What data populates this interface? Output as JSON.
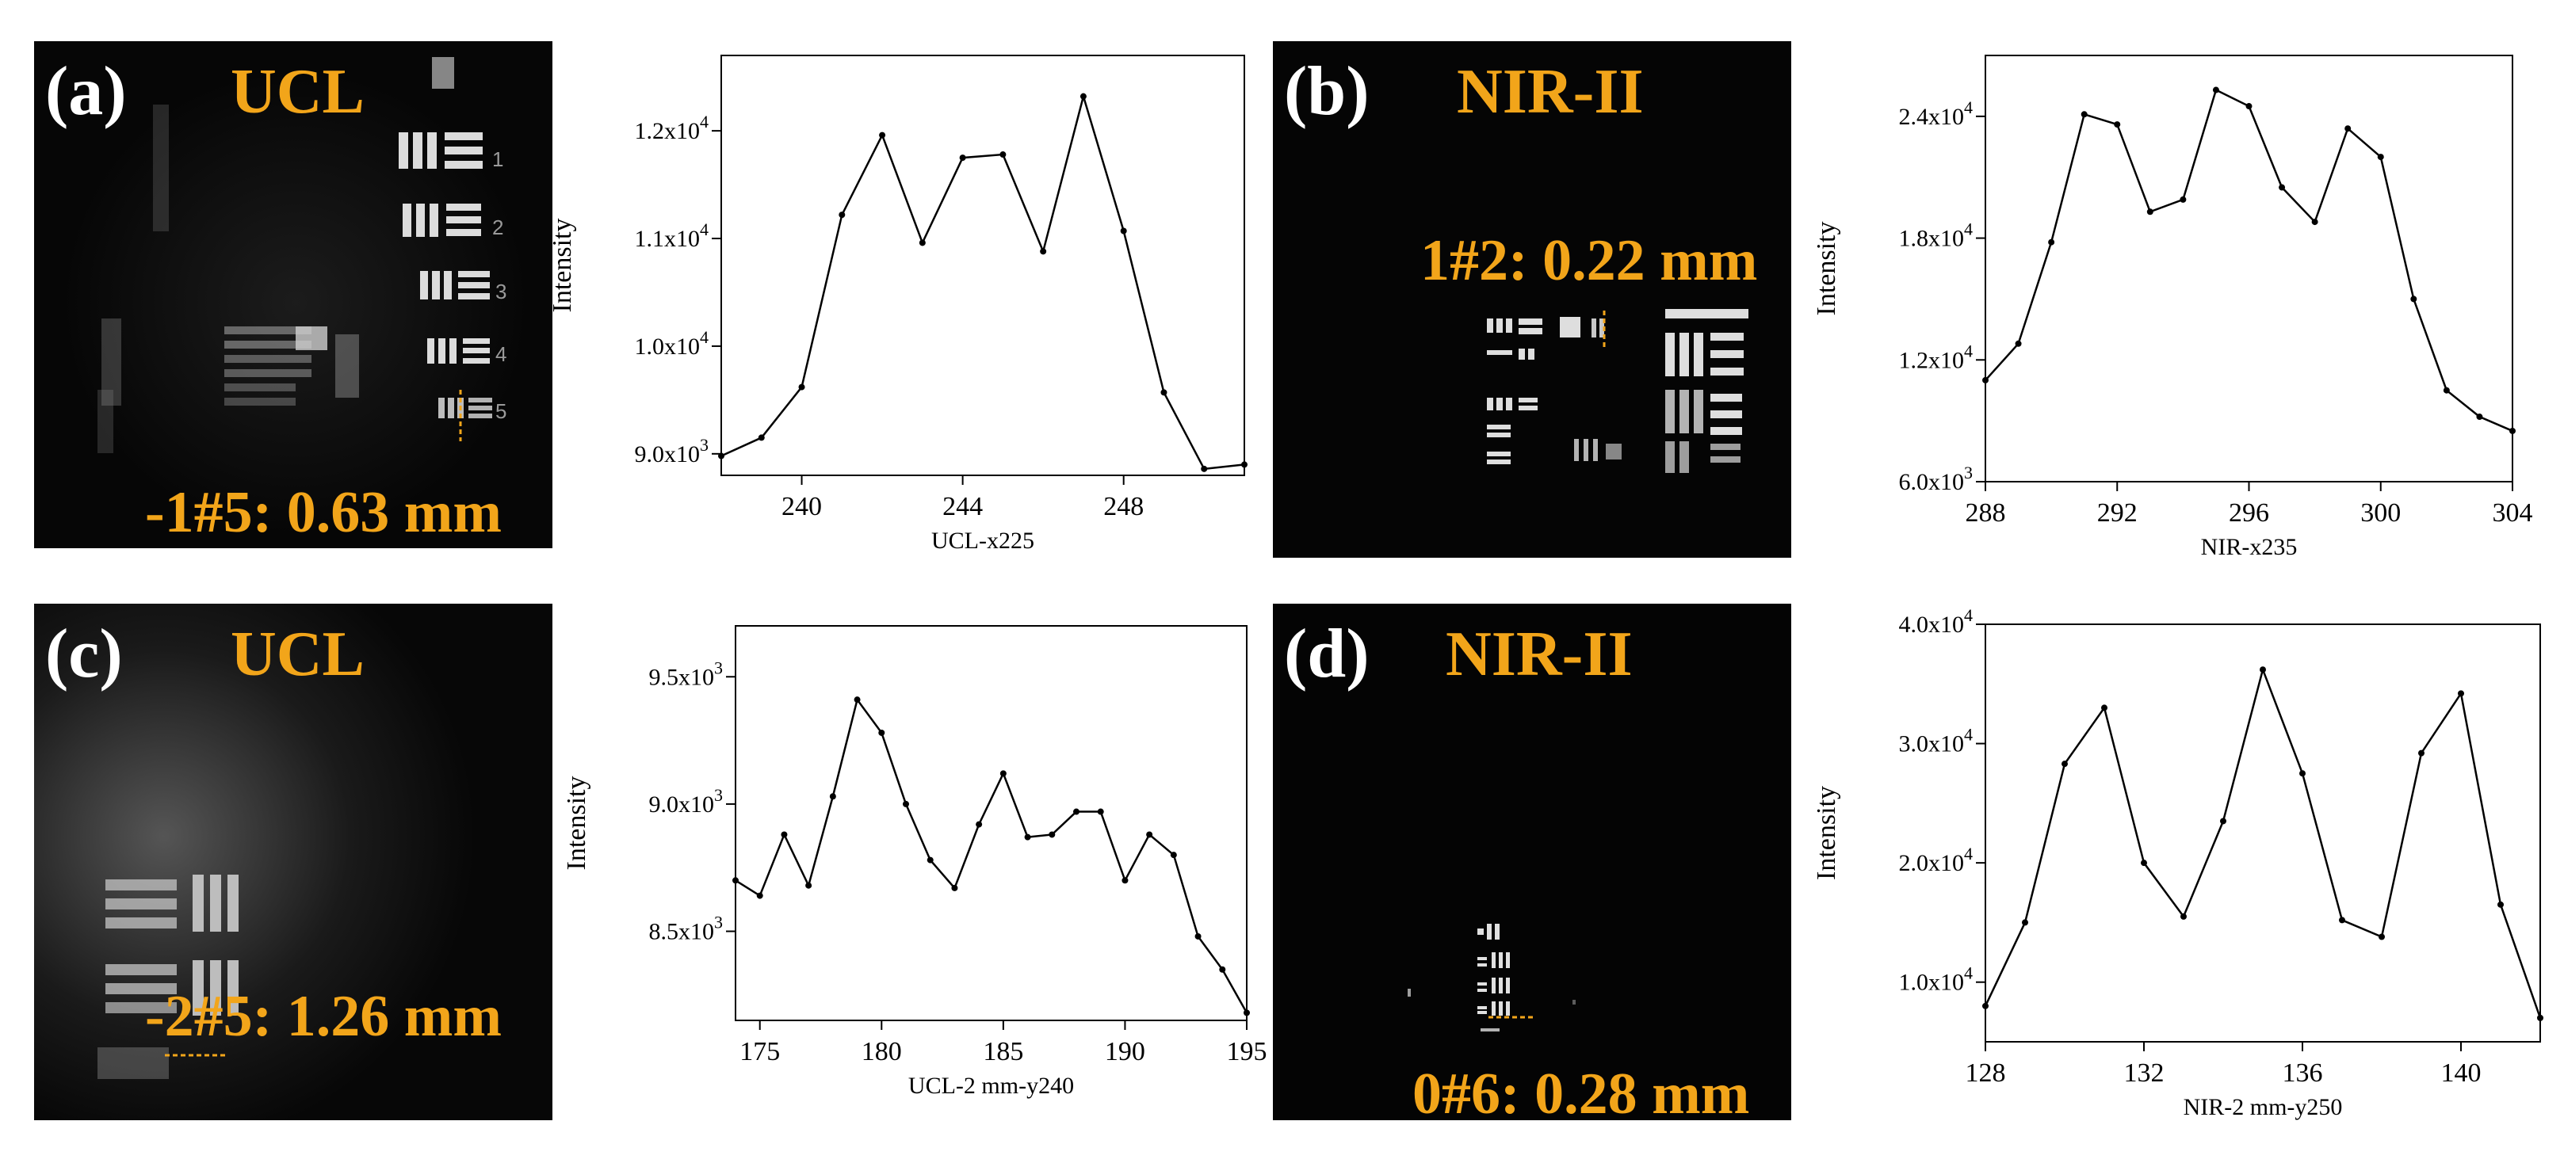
{
  "panels": {
    "a": {
      "letter": "(a)",
      "modality": "UCL",
      "resolution": "-1#5: 0.63 mm"
    },
    "b": {
      "letter": "(b)",
      "modality": "NIR-II",
      "resolution": "1#2: 0.22 mm"
    },
    "c": {
      "letter": "(c)",
      "modality": "UCL",
      "resolution": "-2#5: 1.26 mm"
    },
    "d": {
      "letter": "(d)",
      "modality": "NIR-II",
      "resolution": "0#6: 0.28 mm"
    }
  },
  "colors": {
    "label_accent": "#f2a51a",
    "image_bg": "#050505",
    "line": "#000000"
  },
  "chart_data": [
    {
      "id": "a",
      "type": "line",
      "xlabel": "UCL-x225",
      "ylabel": "Intensity",
      "xlim": [
        238,
        251
      ],
      "ylim": [
        8800,
        12700
      ],
      "xticks": [
        240,
        244,
        248
      ],
      "xtick_labels": [
        "240",
        "244",
        "248"
      ],
      "yticks": [
        9000,
        10000,
        11000,
        12000
      ],
      "ytick_labels": [
        [
          "9.0x10",
          "3"
        ],
        [
          "1.0x10",
          "4"
        ],
        [
          "1.1x10",
          "4"
        ],
        [
          "1.2x10",
          "4"
        ]
      ],
      "series": [
        {
          "name": "UCL-x225",
          "x": [
            238,
            239,
            240,
            241,
            242,
            243,
            244,
            245,
            246,
            247,
            248,
            249,
            250,
            251
          ],
          "y": [
            8980,
            9150,
            9620,
            11220,
            11960,
            10960,
            11750,
            11780,
            10880,
            12320,
            11070,
            9570,
            8860,
            8900
          ]
        }
      ]
    },
    {
      "id": "b",
      "type": "line",
      "xlabel": "NIR-x235",
      "ylabel": "Intensity",
      "xlim": [
        288,
        304
      ],
      "ylim": [
        6000,
        27000
      ],
      "xticks": [
        288,
        292,
        296,
        300,
        304
      ],
      "xtick_labels": [
        "288",
        "292",
        "296",
        "300",
        "304"
      ],
      "yticks": [
        6000,
        12000,
        18000,
        24000
      ],
      "ytick_labels": [
        [
          "6.0x10",
          "3"
        ],
        [
          "1.2x10",
          "4"
        ],
        [
          "1.8x10",
          "4"
        ],
        [
          "2.4x10",
          "4"
        ]
      ],
      "series": [
        {
          "name": "NIR-x235",
          "x": [
            288,
            289,
            290,
            291,
            292,
            293,
            294,
            295,
            296,
            297,
            298,
            299,
            300,
            301,
            302,
            303,
            304
          ],
          "y": [
            11000,
            12800,
            17800,
            24100,
            23600,
            19300,
            19900,
            25300,
            24500,
            20500,
            18800,
            23400,
            22000,
            15000,
            10500,
            9200,
            8500
          ]
        }
      ]
    },
    {
      "id": "c",
      "type": "line",
      "xlabel": "UCL-2 mm-y240",
      "ylabel": "Intensity",
      "xlim": [
        174,
        195
      ],
      "ylim": [
        8150,
        9700
      ],
      "xticks": [
        175,
        180,
        185,
        190,
        195
      ],
      "xtick_labels": [
        "175",
        "180",
        "185",
        "190",
        "195"
      ],
      "yticks": [
        8500,
        9000,
        9500
      ],
      "ytick_labels": [
        [
          "8.5x10",
          "3"
        ],
        [
          "9.0x10",
          "3"
        ],
        [
          "9.5x10",
          "3"
        ]
      ],
      "series": [
        {
          "name": "UCL-2 mm-y240",
          "x": [
            174,
            175,
            176,
            177,
            178,
            179,
            180,
            181,
            182,
            183,
            184,
            185,
            186,
            187,
            188,
            189,
            190,
            191,
            192,
            193,
            194,
            195
          ],
          "y": [
            8700,
            8640,
            8880,
            8680,
            9030,
            9410,
            9280,
            9000,
            8780,
            8670,
            8920,
            9120,
            8870,
            8880,
            8970,
            8970,
            8700,
            8880,
            8800,
            8480,
            8350,
            8180
          ]
        }
      ]
    },
    {
      "id": "d",
      "type": "line",
      "xlabel": "NIR-2 mm-y250",
      "ylabel": "Intensity",
      "xlim": [
        128,
        142
      ],
      "ylim": [
        5000,
        40000
      ],
      "xticks": [
        128,
        132,
        136,
        140
      ],
      "xtick_labels": [
        "128",
        "132",
        "136",
        "140"
      ],
      "yticks": [
        10000,
        20000,
        30000,
        40000
      ],
      "ytick_labels": [
        [
          "1.0x10",
          "4"
        ],
        [
          "2.0x10",
          "4"
        ],
        [
          "3.0x10",
          "4"
        ],
        [
          "4.0x10",
          "4"
        ]
      ],
      "series": [
        {
          "name": "NIR-2 mm-y250",
          "x": [
            128,
            129,
            130,
            131,
            132,
            133,
            134,
            135,
            136,
            137,
            138,
            139,
            140,
            141,
            142
          ],
          "y": [
            8000,
            15000,
            28300,
            33000,
            20000,
            15500,
            23500,
            36200,
            27500,
            15200,
            13800,
            29200,
            34200,
            16500,
            7000
          ]
        }
      ]
    }
  ]
}
